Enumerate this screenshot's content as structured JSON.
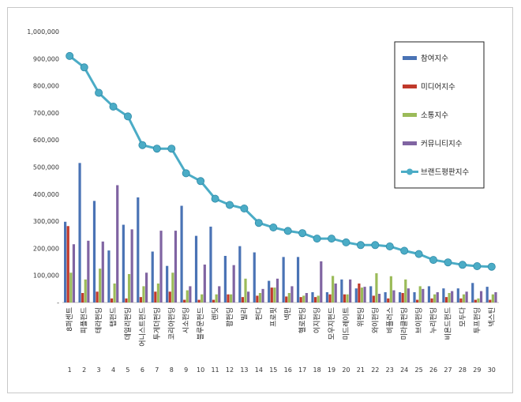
{
  "chart_data": {
    "type": "bar",
    "categories": [
      "8퍼센트",
      "피플펀드",
      "테라펀딩",
      "탭펀드",
      "데일리펀딩",
      "어니스트펀드",
      "투게더펀딩",
      "코리아펀딩",
      "시소펀딩",
      "블루문펀드",
      "렌딧",
      "팝펀딩",
      "빌리",
      "펀다",
      "프로핏",
      "넥펀",
      "헬로펀딩",
      "이지펀딩",
      "모우지펀드",
      "미드레이트",
      "위펀딩",
      "와이펀딩",
      "비플러스",
      "미라클펀딩",
      "브이펀딩",
      "누리펀딩",
      "비욘드펀드",
      "모두다",
      "투프펀딩",
      "넥스틴"
    ],
    "ranks": [
      "1",
      "2",
      "3",
      "4",
      "5",
      "6",
      "7",
      "8",
      "9",
      "10",
      "11",
      "12",
      "13",
      "14",
      "15",
      "16",
      "17",
      "18",
      "19",
      "20",
      "21",
      "22",
      "23",
      "24",
      "25",
      "26",
      "27",
      "28",
      "29",
      "30"
    ],
    "series": [
      {
        "name": "참여지수",
        "color": "#4a73b5",
        "values": [
          298000,
          515000,
          375000,
          192000,
          287000,
          388000,
          188000,
          135000,
          357000,
          246000,
          280000,
          172000,
          208000,
          185000,
          80000,
          168000,
          168000,
          38000,
          38000,
          85000,
          52000,
          60000,
          38000,
          38000,
          38000,
          60000,
          52000,
          52000,
          72000,
          58000
        ]
      },
      {
        "name": "미디어지수",
        "color": "#c0392b",
        "values": [
          282000,
          35000,
          40000,
          15000,
          15000,
          20000,
          40000,
          40000,
          10000,
          10000,
          10000,
          30000,
          20000,
          25000,
          55000,
          22000,
          20000,
          20000,
          30000,
          30000,
          70000,
          25000,
          15000,
          35000,
          10000,
          15000,
          20000,
          15000,
          10000,
          10000
        ]
      },
      {
        "name": "소통지수",
        "color": "#9bbb59",
        "values": [
          110000,
          85000,
          125000,
          70000,
          105000,
          60000,
          70000,
          110000,
          45000,
          30000,
          30000,
          30000,
          88000,
          35000,
          55000,
          35000,
          25000,
          25000,
          98000,
          30000,
          55000,
          108000,
          97000,
          85000,
          60000,
          30000,
          35000,
          30000,
          15000,
          30000
        ]
      },
      {
        "name": "커뮤니티지수",
        "color": "#8064a2",
        "values": [
          215000,
          228000,
          225000,
          433000,
          270000,
          110000,
          265000,
          265000,
          60000,
          140000,
          60000,
          138000,
          40000,
          50000,
          88000,
          60000,
          35000,
          152000,
          70000,
          85000,
          58000,
          32000,
          45000,
          52000,
          50000,
          38000,
          42000,
          40000,
          42000,
          38000
        ]
      }
    ],
    "line": {
      "name": "브랜드평판지수",
      "color": "#4bacc6",
      "values": [
        910000,
        868000,
        774000,
        723000,
        687000,
        581000,
        568000,
        568000,
        477000,
        448000,
        383000,
        360000,
        347000,
        294000,
        277000,
        264000,
        256000,
        236000,
        236000,
        222000,
        212000,
        212000,
        207000,
        191000,
        179000,
        157000,
        148000,
        139000,
        134000,
        132000
      ]
    },
    "ylim": [
      0,
      1000000
    ],
    "yticks": [
      "-",
      "100,000",
      "200,000",
      "300,000",
      "400,000",
      "500,000",
      "600,000",
      "700,000",
      "800,000",
      "900,000",
      "1,000,000"
    ],
    "grid": false,
    "legend_position": "top-right"
  }
}
